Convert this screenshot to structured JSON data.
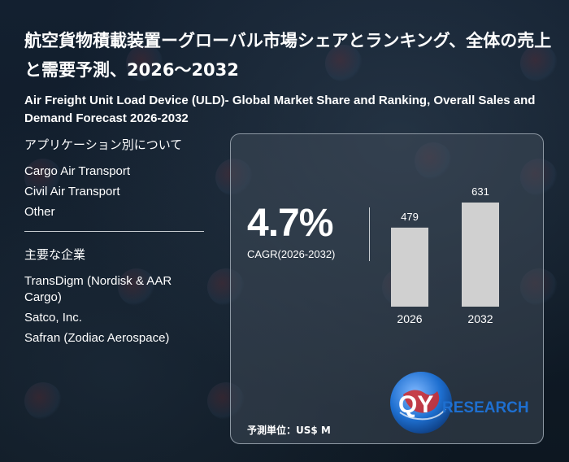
{
  "title_jp": "航空貨物積載装置ーグローバル市場シェアとランキング、全体の売上と需要予測、2026～2032",
  "title_en": "Air Freight Unit Load Device (ULD)- Global Market Share and Ranking, Overall Sales and Demand Forecast 2026-2032",
  "applications": {
    "heading": "アプリケーション別について",
    "items": [
      "Cargo Air Transport",
      "Civil Air Transport",
      "Other"
    ]
  },
  "companies": {
    "heading": "主要な企業",
    "items": [
      "TransDigm (Nordisk & AAR Cargo)",
      "Satco, Inc.",
      "Safran (Zodiac Aerospace)"
    ]
  },
  "cagr": {
    "value": "4.7%",
    "label": "CAGR(2026-2032)"
  },
  "unit_label": "予測単位：US$ M",
  "logo": {
    "text_qy": "QY",
    "text_research": "RESEARCH"
  },
  "colors": {
    "bar": "#d0d0d0",
    "logo_blue": "#1e6fd0",
    "logo_red": "#d42a2a"
  },
  "chart_data": {
    "type": "bar",
    "categories": [
      "2026",
      "2032"
    ],
    "values": [
      479,
      631
    ],
    "title": "",
    "xlabel": "",
    "ylabel": "",
    "ylim": [
      0,
      631
    ]
  }
}
